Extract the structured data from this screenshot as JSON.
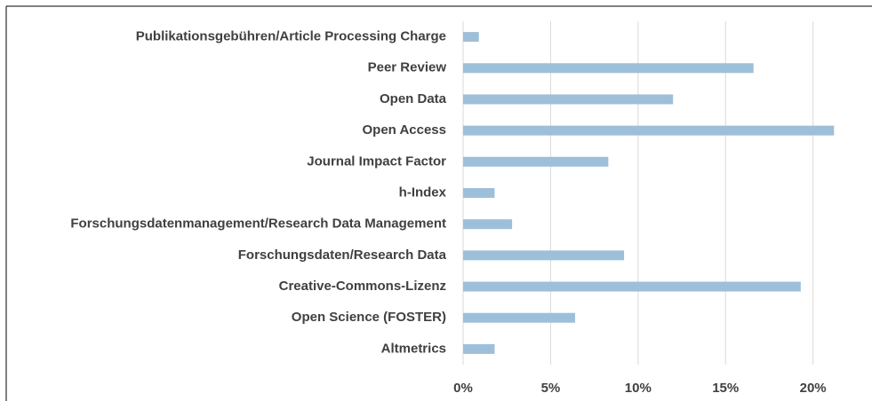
{
  "chart_data": {
    "type": "bar",
    "orientation": "horizontal",
    "categories": [
      "Publikationsgebühren/Article Processing Charge",
      "Peer Review",
      "Open Data",
      "Open Access",
      "Journal Impact Factor",
      "h-Index",
      "Forschungsdatenmanagement/Research Data Management",
      "Forschungsdaten/Research Data",
      "Creative-Commons-Lizenz",
      "Open Science (FOSTER)",
      "Altmetrics"
    ],
    "values": [
      0.9,
      16.6,
      12.0,
      21.2,
      8.3,
      1.8,
      2.8,
      9.2,
      19.3,
      6.4,
      1.8
    ],
    "color": "#9ebfd9",
    "xlim": [
      0,
      22
    ],
    "xticks": [
      {
        "value": 0,
        "label": "0%"
      },
      {
        "value": 5,
        "label": "5%"
      },
      {
        "value": 10,
        "label": "10%"
      },
      {
        "value": 15,
        "label": "15%"
      },
      {
        "value": 20,
        "label": "20%"
      }
    ],
    "grid": true
  }
}
